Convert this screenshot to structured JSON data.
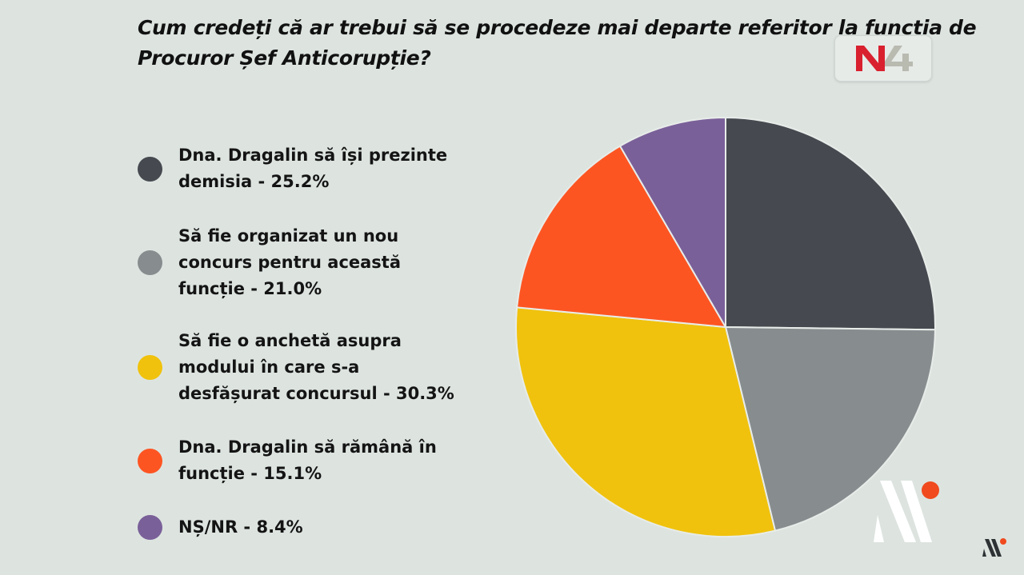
{
  "title": "Cum credeți că ar trebui să se procedeze mai departe referitor la funcția de Procuror Șef Anticorupție?",
  "broadcaster_logo": {
    "text": "N4",
    "colors": {
      "n": "#d9202f",
      "four": "#b9bab0"
    }
  },
  "watermark": {
    "icon": "agency-logo-icon",
    "dot_color": "#f04a1e",
    "bar_color_big": "#ffffff",
    "bar_color_small": "#2e3234"
  },
  "chart_data": {
    "type": "pie",
    "title": "Cum credeți că ar trebui să se procedeze mai departe referitor la funcția de Procuror Șef Anticorupție?",
    "start_angle_deg": 0,
    "direction": "clockwise",
    "legend_position": "left",
    "slices": [
      {
        "label": "Dna. Dragalin să își prezinte demisia - 25.2%",
        "value": 25.2,
        "color": "#464a50"
      },
      {
        "label": "Să fie organizat un nou concurs pentru această funcție - 21.0%",
        "value": 21.0,
        "color": "#878d8f"
      },
      {
        "label": "Să fie o anchetă asupra modului în care s-a desfășurat concursul - 30.3%",
        "value": 30.3,
        "color": "#f0c20d"
      },
      {
        "label": "Dna. Dragalin să rămână în funcție - 15.1%",
        "value": 15.1,
        "color": "#fd5522"
      },
      {
        "label": "NȘ/NR - 8.4%",
        "value": 8.4,
        "color": "#7a6099"
      }
    ]
  }
}
